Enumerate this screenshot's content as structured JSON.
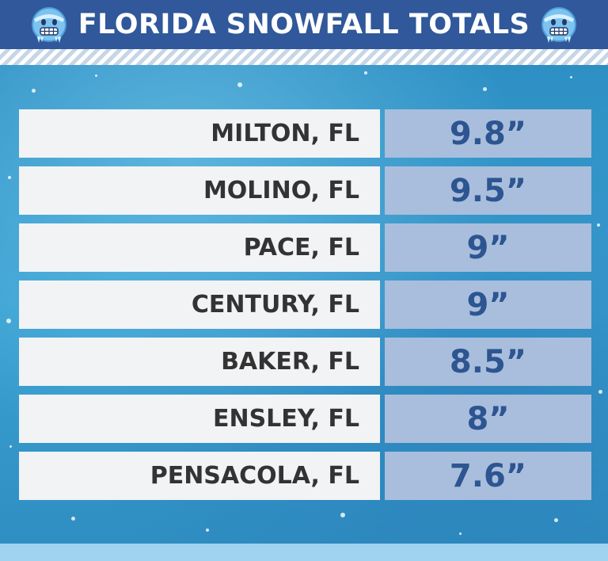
{
  "header": {
    "title": "FLORIDA SNOWFALL TOTALS",
    "left_icon": "cold-face-emoji-icon",
    "right_icon": "cold-face-emoji-icon"
  },
  "colors": {
    "header_bg": "#30589a",
    "city_cell_bg": "#f2f3f5",
    "value_cell_bg": "#a9bedc",
    "value_text": "#2c5591",
    "city_text": "#333333"
  },
  "rows": [
    {
      "city": "MILTON, FL",
      "total": "9.8”"
    },
    {
      "city": "MOLINO, FL",
      "total": "9.5”"
    },
    {
      "city": "PACE, FL",
      "total": "9”"
    },
    {
      "city": "CENTURY, FL",
      "total": "9”"
    },
    {
      "city": "BAKER, FL",
      "total": "8.5”"
    },
    {
      "city": "ENSLEY, FL",
      "total": "8”"
    },
    {
      "city": "PENSACOLA, FL",
      "total": "7.6”"
    }
  ]
}
